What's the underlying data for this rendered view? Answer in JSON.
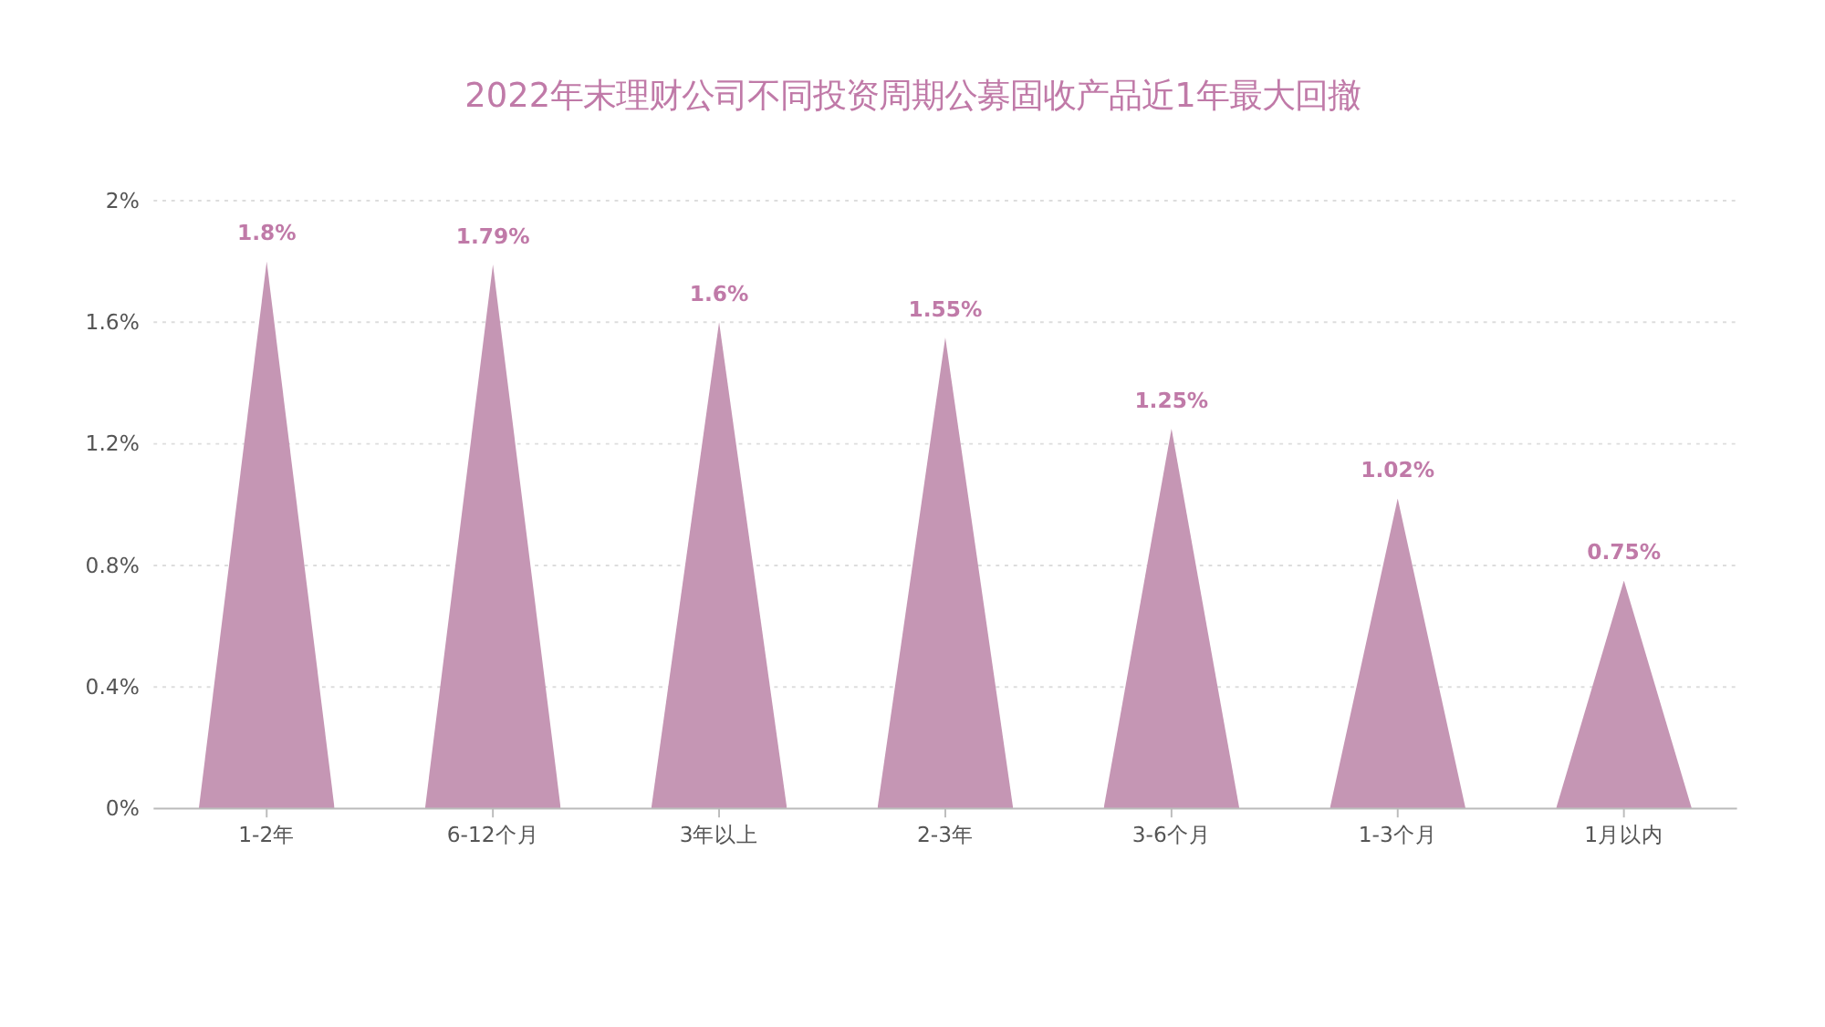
{
  "chart_data": {
    "type": "bar",
    "title": "2022年末理财公司不同投资周期公募固收产品近1年最大回撤",
    "categories": [
      "1-2年",
      "6-12个月",
      "3年以上",
      "2-3年",
      "3-6个月",
      "1-3个月",
      "1月以内"
    ],
    "values": [
      1.8,
      1.79,
      1.6,
      1.55,
      1.25,
      1.02,
      0.75
    ],
    "value_labels": [
      "1.8%",
      "1.79%",
      "1.6%",
      "1.55%",
      "1.25%",
      "1.02%",
      "0.75%"
    ],
    "color": "#c596b4",
    "ylim": [
      0,
      2
    ],
    "yticks": [
      {
        "value": 0,
        "label": "0%"
      },
      {
        "value": 0.4,
        "label": "0.4%"
      },
      {
        "value": 0.8,
        "label": "0.8%"
      },
      {
        "value": 1.2,
        "label": "1.2%"
      },
      {
        "value": 1.6,
        "label": "1.6%"
      },
      {
        "value": 2,
        "label": "2%"
      }
    ],
    "grid": "y"
  }
}
